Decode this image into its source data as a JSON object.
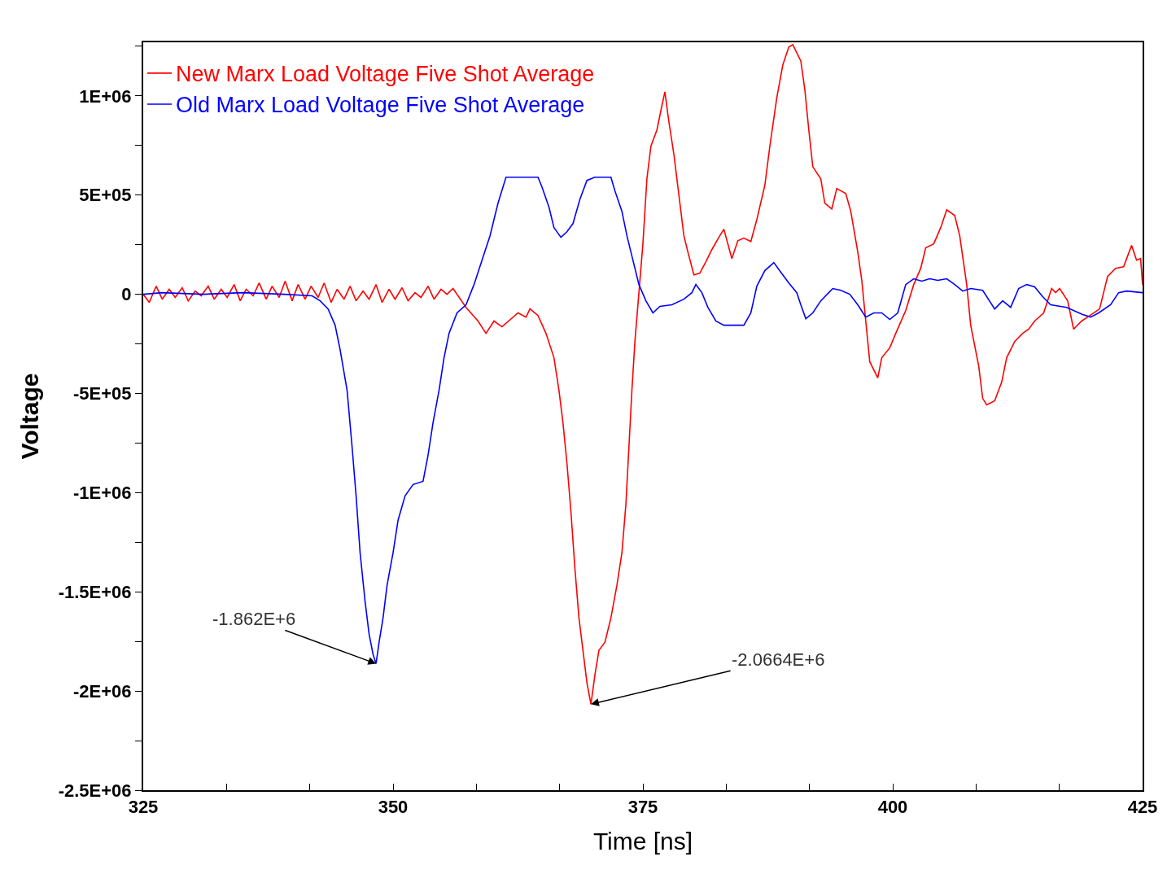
{
  "chart_data": {
    "type": "line",
    "xlabel": "Time [ns]",
    "ylabel": "Voltage",
    "xlim": [
      325,
      425
    ],
    "xticks": [
      325,
      {
        "value": 333.33,
        "label": null
      },
      {
        "value": 341.67,
        "label": null
      },
      350,
      {
        "value": 358.33,
        "label": null
      },
      {
        "value": 366.67,
        "label": null
      },
      375,
      {
        "value": 383.33,
        "label": null
      },
      {
        "value": 391.67,
        "label": null
      },
      400,
      {
        "value": 408.33,
        "label": null
      },
      {
        "value": 416.67,
        "label": null
      },
      425
    ],
    "ylim": [
      -2500000,
      1270000
    ],
    "yticks": [
      {
        "value": -2500000,
        "label": "-2.5E+06"
      },
      {
        "value": -2250000,
        "label": null
      },
      {
        "value": -2000000,
        "label": "-2E+06"
      },
      {
        "value": -1750000,
        "label": null
      },
      {
        "value": -1500000,
        "label": "-1.5E+06"
      },
      {
        "value": -1250000,
        "label": null
      },
      {
        "value": -1000000,
        "label": "-1E+06"
      },
      {
        "value": -750000,
        "label": null
      },
      {
        "value": -500000,
        "label": "-5E+05"
      },
      {
        "value": -250000,
        "label": null
      },
      0,
      {
        "value": 250000,
        "label": null
      },
      {
        "value": 500000,
        "label": "5E+05"
      },
      {
        "value": 750000,
        "label": null
      },
      {
        "value": 1000000,
        "label": "1E+06"
      },
      {
        "value": 1250000,
        "label": null
      }
    ],
    "grid": false,
    "legend": "top left",
    "marker": "none",
    "line_style": "solid",
    "series": [
      {
        "name": "New Marx Load Voltage Five Shot Average",
        "color": "#ff0000",
        "x": [
          325,
          325.6,
          326.3,
          326.9,
          327.6,
          328.2,
          328.9,
          329.5,
          330.2,
          330.8,
          331.5,
          332.1,
          332.8,
          333.4,
          334.1,
          334.7,
          335.3,
          336.0,
          336.6,
          337.3,
          337.9,
          338.6,
          339.2,
          339.9,
          340.5,
          341.2,
          341.8,
          342.5,
          343.1,
          343.8,
          344.4,
          345.1,
          345.7,
          346.3,
          347.0,
          347.6,
          348.3,
          348.9,
          349.6,
          350.2,
          350.9,
          351.5,
          352.2,
          352.8,
          353.5,
          354.1,
          354.8,
          355.4,
          356.0,
          357.3,
          358.5,
          359.3,
          360.1,
          360.9,
          362.5,
          363.3,
          363.7,
          364.5,
          365.3,
          366.1,
          366.6,
          367.0,
          367.4,
          367.8,
          368.2,
          368.6,
          369.0,
          369.4,
          369.8,
          370.2,
          370.6,
          371.2,
          371.8,
          372.4,
          372.9,
          373.3,
          373.6,
          373.9,
          374.2,
          374.6,
          375.0,
          375.4,
          375.8,
          376.4,
          376.9,
          377.2,
          377.6,
          378.1,
          378.7,
          379.1,
          379.5,
          380.1,
          380.7,
          381.3,
          381.9,
          382.6,
          383.1,
          383.5,
          383.9,
          384.5,
          385.1,
          385.8,
          386.4,
          387.2,
          387.7,
          388.4,
          389.0,
          389.6,
          390.0,
          390.8,
          391.2,
          391.6,
          392.0,
          392.8,
          393.2,
          393.9,
          394.4,
          395.3,
          395.8,
          396.5,
          396.9,
          397.3,
          397.7,
          398.5,
          398.9,
          399.7,
          400.3,
          401.3,
          402.1,
          402.8,
          403.3,
          404.1,
          404.8,
          405.4,
          406.2,
          406.7,
          407.4,
          407.8,
          408.6,
          409.0,
          409.4,
          410.2,
          410.9,
          411.4,
          412.2,
          413.0,
          413.6,
          414.2,
          415.1,
          415.9,
          416.3,
          416.7,
          417.5,
          418.1,
          418.9,
          419.5,
          420.7,
          421.5,
          422.3,
          423.1,
          423.9,
          424.4,
          424.8,
          425.0
        ],
        "values": [
          0,
          -41000,
          41000,
          -25000,
          25000,
          -16000,
          33000,
          -33000,
          16000,
          -8000,
          41000,
          -25000,
          25000,
          -16000,
          49000,
          -33000,
          25000,
          -8000,
          57000,
          -25000,
          41000,
          -16000,
          66000,
          -33000,
          49000,
          -25000,
          41000,
          -16000,
          57000,
          -41000,
          25000,
          -25000,
          41000,
          -33000,
          16000,
          -25000,
          49000,
          -41000,
          25000,
          -25000,
          33000,
          -33000,
          8000,
          -16000,
          41000,
          -25000,
          25000,
          0,
          29000,
          -66000,
          -135000,
          -197000,
          -135000,
          -164000,
          -94000,
          -115000,
          -74000,
          -107000,
          -197000,
          -320000,
          -484000,
          -647000,
          -852000,
          -1098000,
          -1385000,
          -1631000,
          -1795000,
          -1959000,
          -2066400,
          -1918000,
          -1795000,
          -1754000,
          -1631000,
          -1467000,
          -1303000,
          -1057000,
          -770000,
          -484000,
          -238000,
          8000,
          254000,
          582000,
          746000,
          828000,
          951000,
          1020000,
          869000,
          705000,
          459000,
          295000,
          213000,
          98000,
          107000,
          164000,
          225000,
          287000,
          328000,
          254000,
          180000,
          270000,
          283000,
          266000,
          377000,
          549000,
          746000,
          992000,
          1156000,
          1246000,
          1258000,
          1176000,
          1033000,
          828000,
          643000,
          582000,
          459000,
          430000,
          533000,
          508000,
          418000,
          213000,
          70000,
          -135000,
          -340000,
          -422000,
          -320000,
          -270000,
          -197000,
          -82000,
          49000,
          131000,
          234000,
          254000,
          336000,
          426000,
          397000,
          295000,
          49000,
          -156000,
          -361000,
          -525000,
          -557000,
          -537000,
          -443000,
          -320000,
          -238000,
          -197000,
          -176000,
          -135000,
          -94000,
          29000,
          8000,
          29000,
          -33000,
          -176000,
          -135000,
          -115000,
          -74000,
          90000,
          131000,
          139000,
          246000,
          172000,
          180000,
          49000
        ]
      },
      {
        "name": "Old Marx Load Voltage Five Shot Average",
        "color": "#0000ff",
        "x": [
          325.0,
          326.9,
          331.0,
          335.0,
          339.1,
          341.9,
          342.7,
          343.5,
          344.2,
          344.7,
          345.4,
          345.9,
          346.3,
          346.7,
          347.2,
          347.6,
          348.0,
          348.3,
          348.6,
          349.0,
          349.4,
          350.0,
          350.5,
          351.2,
          352.0,
          353.0,
          353.5,
          354.0,
          354.6,
          355.1,
          355.6,
          356.4,
          357.3,
          358.1,
          358.9,
          359.7,
          360.5,
          361.3,
          364.5,
          364.9,
          365.6,
          366.1,
          366.8,
          367.4,
          368.0,
          368.7,
          369.4,
          370.2,
          371.8,
          372.2,
          372.9,
          373.4,
          374.0,
          374.6,
          375.3,
          376.0,
          376.7,
          377.9,
          379.1,
          379.9,
          380.3,
          380.9,
          381.5,
          382.3,
          383.1,
          384.3,
          385.1,
          385.8,
          386.4,
          387.2,
          388.1,
          388.8,
          389.6,
          390.4,
          390.8,
          391.3,
          392.0,
          392.8,
          394.0,
          394.8,
          395.7,
          396.5,
          397.3,
          398.1,
          398.9,
          399.7,
          400.5,
          401.3,
          402.1,
          402.9,
          403.7,
          404.5,
          405.4,
          406.2,
          407.0,
          407.8,
          409.0,
          410.2,
          411.0,
          411.8,
          412.6,
          413.4,
          414.2,
          415.0,
          415.8,
          417.4,
          419.0,
          419.8,
          420.6,
          421.8,
          422.6,
          423.4,
          425.0
        ],
        "values": [
          0,
          8000,
          0,
          8000,
          0,
          -8000,
          -33000,
          -74000,
          -156000,
          -279000,
          -484000,
          -770000,
          -1016000,
          -1303000,
          -1549000,
          -1713000,
          -1816000,
          -1862000,
          -1754000,
          -1631000,
          -1467000,
          -1303000,
          -1139000,
          -1016000,
          -959000,
          -943000,
          -811000,
          -647000,
          -484000,
          -320000,
          -197000,
          -94000,
          -53000,
          49000,
          172000,
          295000,
          459000,
          590000,
          590000,
          541000,
          439000,
          336000,
          287000,
          315000,
          356000,
          479000,
          574000,
          590000,
          590000,
          521000,
          418000,
          295000,
          172000,
          49000,
          -33000,
          -94000,
          -61000,
          -53000,
          -25000,
          8000,
          49000,
          8000,
          -66000,
          -135000,
          -156000,
          -156000,
          -156000,
          -94000,
          41000,
          119000,
          160000,
          111000,
          57000,
          8000,
          -53000,
          -123000,
          -94000,
          -33000,
          29000,
          20000,
          0,
          -53000,
          -115000,
          -94000,
          -94000,
          -127000,
          -94000,
          49000,
          78000,
          66000,
          78000,
          70000,
          78000,
          49000,
          16000,
          29000,
          20000,
          -74000,
          -33000,
          -66000,
          29000,
          49000,
          37000,
          -12000,
          -53000,
          -66000,
          -102000,
          -115000,
          -94000,
          -53000,
          8000,
          16000,
          8000
        ]
      }
    ],
    "annotations": [
      {
        "text": "-1.862E+6",
        "x": 348.3,
        "y": -1862000
      },
      {
        "text": "-2.0664E+6",
        "x": 369.8,
        "y": -2066400
      }
    ]
  }
}
